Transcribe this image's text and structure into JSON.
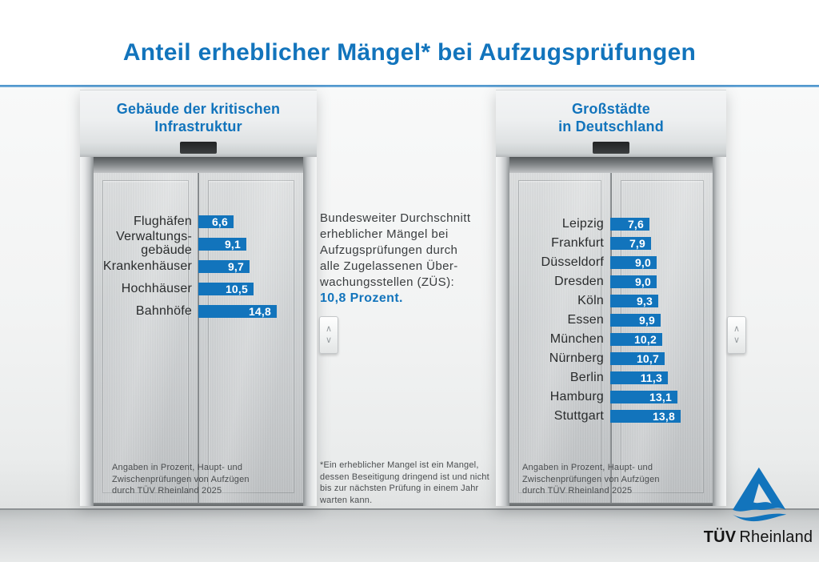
{
  "title": "Anteil erheblicher Mängel* bei Aufzugsprüfungen",
  "colors": {
    "brand_blue": "#1274BC",
    "value_text": "#FFFFFF",
    "label_text": "#2A2C2D"
  },
  "elevators": {
    "left": {
      "header": "Gebäude der kritischen\nInfrastruktur",
      "footnote": "Angaben in Prozent, Haupt- und\nZwischenprüfungen von Aufzügen\ndurch TÜV Rheinland 2025"
    },
    "right": {
      "header": "Großstädte\nin Deutschland",
      "footnote": "Angaben in Prozent, Haupt- und\nZwischenprüfungen von Aufzügen\ndurch TÜV Rheinland 2025"
    }
  },
  "center_panel": {
    "text": "Bundesweiter Durchschnitt\nerheblicher Mängel bei\nAufzugsprüfungen durch\nalle Zugelassenen Über-\nwachungsstellen (ZÜS):",
    "highlight": "10,8 Prozent.",
    "footnote": "*Ein erheblicher Mangel ist ein Mangel,\ndessen Beseitigung dringend ist und nicht\nbis zur nächsten Prüfung in einem Jahr\nwarten kann."
  },
  "elevator_controls": {
    "up": "∧",
    "down": "∨"
  },
  "logo": {
    "bold": "TÜV",
    "regular": "Rheinland"
  },
  "chart_data": [
    {
      "type": "bar",
      "orientation": "horizontal",
      "title": "Gebäude der kritischen Infrastruktur",
      "unit": "Prozent",
      "xlim": [
        0,
        15
      ],
      "categories": [
        "Flughäfen",
        "Verwaltungs-\ngebäude",
        "Krankenhäuser",
        "Hochhäuser",
        "Bahnhöfe"
      ],
      "values": [
        6.6,
        9.1,
        9.7,
        10.5,
        14.8
      ],
      "value_labels": [
        "6,6",
        "9,1",
        "9,7",
        "10,5",
        "14,8"
      ]
    },
    {
      "type": "bar",
      "orientation": "horizontal",
      "title": "Großstädte in Deutschland",
      "unit": "Prozent",
      "xlim": [
        0,
        15
      ],
      "categories": [
        "Leipzig",
        "Frankfurt",
        "Düsseldorf",
        "Dresden",
        "Köln",
        "Essen",
        "München",
        "Nürnberg",
        "Berlin",
        "Hamburg",
        "Stuttgart"
      ],
      "values": [
        7.6,
        7.9,
        9.0,
        9.0,
        9.3,
        9.9,
        10.2,
        10.7,
        11.3,
        13.1,
        13.8
      ],
      "value_labels": [
        "7,6",
        "7,9",
        "9,0",
        "9,0",
        "9,3",
        "9,9",
        "10,2",
        "10,7",
        "11,3",
        "13,1",
        "13,8"
      ]
    }
  ]
}
